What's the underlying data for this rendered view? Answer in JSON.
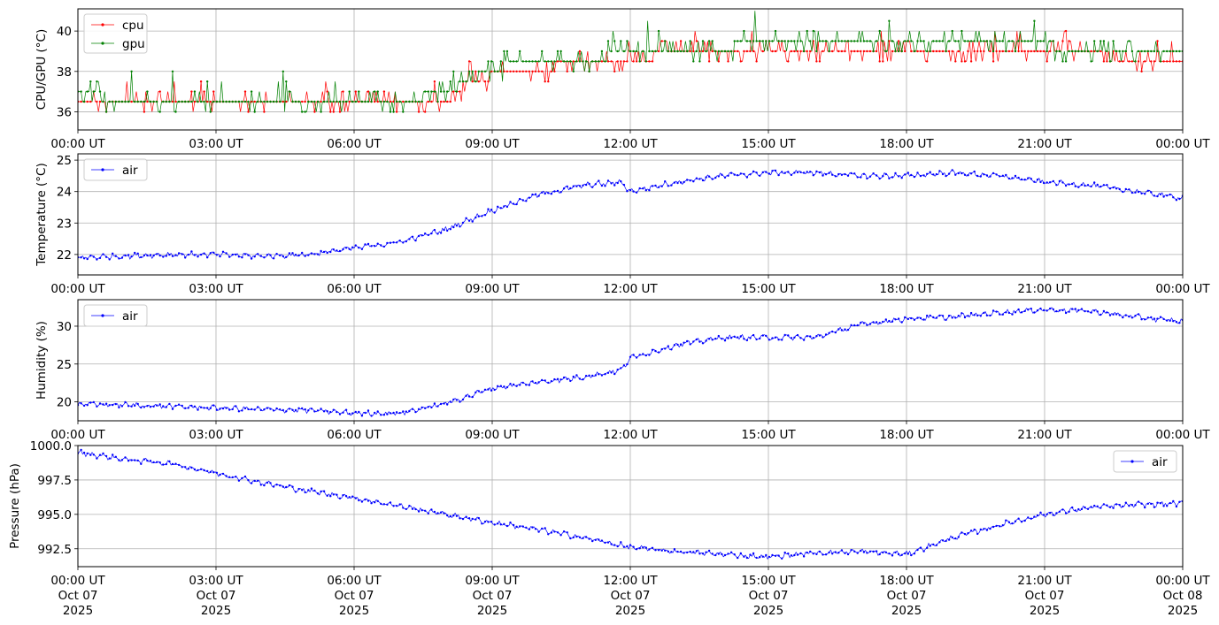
{
  "chart_data": [
    {
      "type": "line",
      "ylabel": "CPU/GPU (°C)",
      "ylim": [
        35.1,
        41.1
      ],
      "yticks": [
        "36",
        "38",
        "40"
      ],
      "xlim": [
        "2025-10-07T00:00Z",
        "2025-10-08T00:00Z"
      ],
      "xticks": [
        "00:00 UT",
        "03:00 UT",
        "06:00 UT",
        "09:00 UT",
        "12:00 UT",
        "15:00 UT",
        "18:00 UT",
        "21:00 UT",
        "00:00 UT"
      ],
      "grid": true,
      "legend": "top-left",
      "series": [
        {
          "name": "cpu",
          "color": "#ff0000",
          "x": [
            0,
            1,
            2,
            3,
            4,
            5,
            6,
            7,
            8,
            8.5,
            9,
            10,
            10.5,
            11,
            12,
            13,
            14,
            15,
            16,
            17,
            18,
            19,
            20,
            21,
            22,
            23,
            24
          ],
          "values": [
            36.5,
            36.5,
            36.5,
            36.5,
            36.5,
            36.4,
            36.4,
            36.4,
            36.6,
            37.4,
            37.8,
            38.0,
            38.4,
            38.6,
            38.7,
            38.8,
            38.9,
            39.0,
            39.0,
            39.1,
            39.1,
            39.1,
            39.1,
            39.0,
            38.8,
            38.7,
            38.7
          ]
        },
        {
          "name": "gpu",
          "color": "#008000",
          "x": [
            0,
            1,
            2,
            3,
            4,
            5,
            6,
            7,
            8,
            8.5,
            9,
            10,
            10.5,
            11,
            12,
            13,
            14,
            15,
            16,
            17,
            18,
            19,
            20,
            21,
            22,
            23,
            24
          ],
          "values": [
            36.8,
            36.7,
            36.6,
            36.6,
            36.5,
            36.4,
            36.5,
            36.6,
            36.9,
            37.6,
            38.2,
            38.4,
            38.5,
            38.7,
            38.8,
            39.0,
            39.2,
            39.4,
            39.4,
            39.4,
            39.4,
            39.3,
            39.3,
            39.3,
            39.0,
            38.9,
            38.9
          ]
        }
      ]
    },
    {
      "type": "line",
      "ylabel": "Temperature (°C)",
      "ylim": [
        21.35,
        25.2
      ],
      "yticks": [
        "22",
        "23",
        "24",
        "25"
      ],
      "xlim": [
        "2025-10-07T00:00Z",
        "2025-10-08T00:00Z"
      ],
      "xticks": [
        "00:00 UT",
        "03:00 UT",
        "06:00 UT",
        "09:00 UT",
        "12:00 UT",
        "15:00 UT",
        "18:00 UT",
        "21:00 UT",
        "00:00 UT"
      ],
      "grid": true,
      "legend": "top-left",
      "series": [
        {
          "name": "air",
          "color": "#0000ff",
          "x": [
            0,
            1,
            2,
            3,
            4,
            5,
            6,
            7,
            8,
            9,
            10,
            11,
            11.8,
            12,
            13,
            14,
            15,
            16,
            17,
            18,
            19,
            20,
            21,
            22,
            23,
            24
          ],
          "values": [
            21.9,
            21.95,
            22.0,
            22.0,
            21.95,
            22.0,
            22.2,
            22.4,
            22.8,
            23.4,
            23.9,
            24.2,
            24.3,
            24.0,
            24.3,
            24.5,
            24.6,
            24.6,
            24.5,
            24.5,
            24.6,
            24.5,
            24.3,
            24.2,
            24.0,
            23.8
          ]
        }
      ]
    },
    {
      "type": "line",
      "ylabel": "Humidity (%)",
      "ylim": [
        17.5,
        33.5
      ],
      "yticks": [
        "20",
        "25",
        "30"
      ],
      "xlim": [
        "2025-10-07T00:00Z",
        "2025-10-08T00:00Z"
      ],
      "xticks": [
        "00:00 UT",
        "03:00 UT",
        "06:00 UT",
        "09:00 UT",
        "12:00 UT",
        "15:00 UT",
        "18:00 UT",
        "21:00 UT",
        "00:00 UT"
      ],
      "grid": true,
      "legend": "top-left",
      "series": [
        {
          "name": "air",
          "color": "#0000ff",
          "x": [
            0,
            1,
            2,
            3,
            4,
            5,
            6,
            7,
            8,
            9,
            10,
            11,
            11.8,
            12,
            13,
            14,
            15,
            16,
            17,
            18,
            19,
            20,
            21,
            22,
            23,
            24
          ],
          "values": [
            19.7,
            19.6,
            19.4,
            19.2,
            19.0,
            18.9,
            18.5,
            18.5,
            19.8,
            21.8,
            22.6,
            23.3,
            24.2,
            25.8,
            27.5,
            28.5,
            28.5,
            28.5,
            30.2,
            31.0,
            31.2,
            31.8,
            32.2,
            32.0,
            31.2,
            30.6
          ]
        }
      ]
    },
    {
      "type": "line",
      "ylabel": "Pressure (hPa)",
      "ylim": [
        991.2,
        1000.0
      ],
      "yticks": [
        "992.5",
        "995.0",
        "997.5",
        "1000.0"
      ],
      "xlim": [
        "2025-10-07T00:00Z",
        "2025-10-08T00:00Z"
      ],
      "xticks": [
        "00:00 UT",
        "03:00 UT",
        "06:00 UT",
        "09:00 UT",
        "12:00 UT",
        "15:00 UT",
        "18:00 UT",
        "21:00 UT",
        "00:00 UT"
      ],
      "xticks_date": [
        "Oct 07",
        "Oct 07",
        "Oct 07",
        "Oct 07",
        "Oct 07",
        "Oct 07",
        "Oct 07",
        "Oct 07",
        "Oct 08"
      ],
      "xticks_year": [
        "2025",
        "2025",
        "2025",
        "2025",
        "2025",
        "2025",
        "2025",
        "2025",
        "2025"
      ],
      "grid": true,
      "legend": "top-right",
      "series": [
        {
          "name": "air",
          "color": "#0000ff",
          "x": [
            0,
            1,
            2,
            3,
            4,
            5,
            6,
            7,
            8,
            9,
            10,
            11,
            12,
            13,
            14,
            15,
            16,
            17,
            18,
            19,
            20,
            21,
            22,
            23,
            24
          ],
          "values": [
            999.5,
            999.0,
            998.7,
            998.0,
            997.3,
            996.7,
            996.2,
            995.6,
            995.0,
            994.4,
            993.9,
            993.3,
            992.6,
            992.3,
            992.1,
            991.9,
            992.2,
            992.3,
            992.1,
            993.3,
            994.2,
            995.0,
            995.5,
            995.7,
            995.8
          ]
        }
      ]
    }
  ]
}
